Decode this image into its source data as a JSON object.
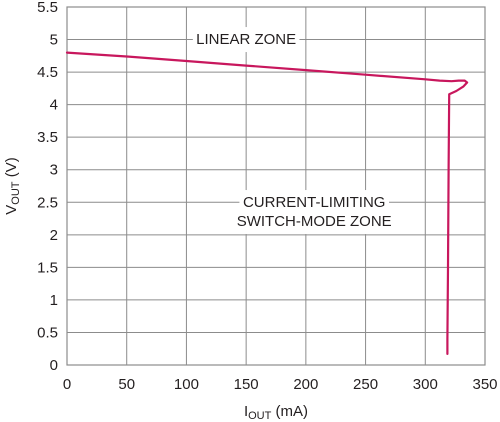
{
  "chart_data": {
    "type": "line",
    "title": "",
    "xlabel": {
      "main": "I",
      "sub": "OUT",
      "unit": " (mA)"
    },
    "ylabel": {
      "main": "V",
      "sub": "OUT",
      "unit": " (V)"
    },
    "xlim": [
      0,
      350
    ],
    "ylim": [
      0,
      5.5
    ],
    "xticks": [
      0,
      50,
      100,
      150,
      200,
      250,
      300,
      350
    ],
    "yticks": [
      0,
      0.5,
      1,
      1.5,
      2,
      2.5,
      3,
      3.5,
      4,
      4.5,
      5,
      5.5
    ],
    "xtick_labels": [
      "0",
      "50",
      "100",
      "150",
      "200",
      "250",
      "300",
      "350"
    ],
    "ytick_labels": [
      "0",
      "0.5",
      "1",
      "1.5",
      "2",
      "2.5",
      "3",
      "3.5",
      "4",
      "4.5",
      "5",
      "5.5"
    ],
    "grid": true,
    "line_color": "#c8175d",
    "grid_color": "#8c8c8c",
    "annotations": [
      {
        "lines": [
          "LINEAR ZONE"
        ],
        "x": 150,
        "y": 5.0
      },
      {
        "lines": [
          "CURRENT-LIMITING",
          "SWITCH-MODE ZONE"
        ],
        "x": 207,
        "y": 2.35
      }
    ],
    "series": [
      {
        "x": [
          0,
          50,
          100,
          150,
          200,
          250,
          300,
          312,
          322,
          328,
          333,
          335,
          332,
          326,
          320,
          319.5,
          319,
          318.5,
          318.5
        ],
        "y": [
          4.8,
          4.74,
          4.67,
          4.6,
          4.53,
          4.46,
          4.39,
          4.37,
          4.36,
          4.37,
          4.37,
          4.34,
          4.28,
          4.21,
          4.16,
          3.0,
          1.5,
          0.4,
          0.17
        ]
      }
    ]
  }
}
